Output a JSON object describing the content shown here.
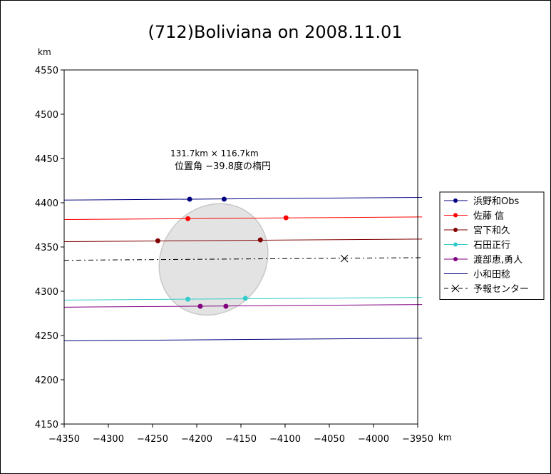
{
  "chart_data": {
    "type": "scatter",
    "title": "(712)Boliviana on 2008.11.01",
    "x_unit": "km",
    "y_unit": "km",
    "xlim": [
      -4350,
      -3950
    ],
    "ylim": [
      4150,
      4550
    ],
    "x_ticks": [
      -4350,
      -4300,
      -4250,
      -4200,
      -4150,
      -4100,
      -4050,
      -4000,
      -3950
    ],
    "y_ticks": [
      4150,
      4200,
      4250,
      4300,
      4350,
      4400,
      4450,
      4500,
      4550
    ],
    "x_tick_labels": [
      "−4350",
      "−4300",
      "−4250",
      "−4200",
      "−4150",
      "−4100",
      "−4050",
      "−4000",
      "−3950"
    ],
    "y_tick_labels": [
      "4150",
      "4200",
      "4250",
      "4300",
      "4350",
      "4400",
      "4450",
      "4500",
      "4550"
    ],
    "grid": false,
    "legend_position": "right",
    "annotation": {
      "line1": "131.7km × 116.7km",
      "line2": "位置角 −39.8度の楕円"
    },
    "ellipse": {
      "center": [
        -4181,
        4336
      ],
      "major_axis_km": 131.7,
      "minor_axis_km": 116.7,
      "position_angle_deg": -39.8,
      "fill": "#e3e3e3",
      "stroke": "#c8c8c8"
    },
    "series": [
      {
        "name": "浜野和Obs",
        "color": "#000080",
        "line": [
          [
            -4350,
            4403
          ],
          [
            -3945,
            4406
          ]
        ],
        "points": [
          [
            -4208,
            4404
          ],
          [
            -4169,
            4404
          ]
        ]
      },
      {
        "name": "佐藤 信",
        "color": "#ff0000",
        "line": [
          [
            -4350,
            4381
          ],
          [
            -3945,
            4384
          ]
        ],
        "points": [
          [
            -4210,
            4382
          ],
          [
            -4099,
            4383
          ]
        ]
      },
      {
        "name": "宮下和久",
        "color": "#800000",
        "line": [
          [
            -4350,
            4356
          ],
          [
            -3945,
            4359
          ]
        ],
        "points": [
          [
            -4244,
            4357
          ],
          [
            -4128,
            4358
          ]
        ]
      },
      {
        "name": "石田正行",
        "color": "#33cccc",
        "line": [
          [
            -4350,
            4290
          ],
          [
            -3945,
            4293
          ]
        ],
        "points": [
          [
            -4210,
            4291
          ],
          [
            -4145,
            4292
          ]
        ]
      },
      {
        "name": "渡部恵,勇人",
        "color": "#800080",
        "line": [
          [
            -4350,
            4282
          ],
          [
            -3945,
            4285
          ]
        ],
        "points": [
          [
            -4196,
            4283
          ],
          [
            -4167,
            4283
          ]
        ]
      },
      {
        "name": "小和田稔",
        "color": "#000080",
        "line": [
          [
            -4350,
            4244
          ],
          [
            -3945,
            4247
          ]
        ],
        "points": []
      },
      {
        "name": "予報センター",
        "color": "#000000",
        "dashed": true,
        "line": [
          [
            -4350,
            4335
          ],
          [
            -3945,
            4338
          ]
        ],
        "points": [
          [
            -4033,
            4337
          ]
        ]
      }
    ]
  }
}
